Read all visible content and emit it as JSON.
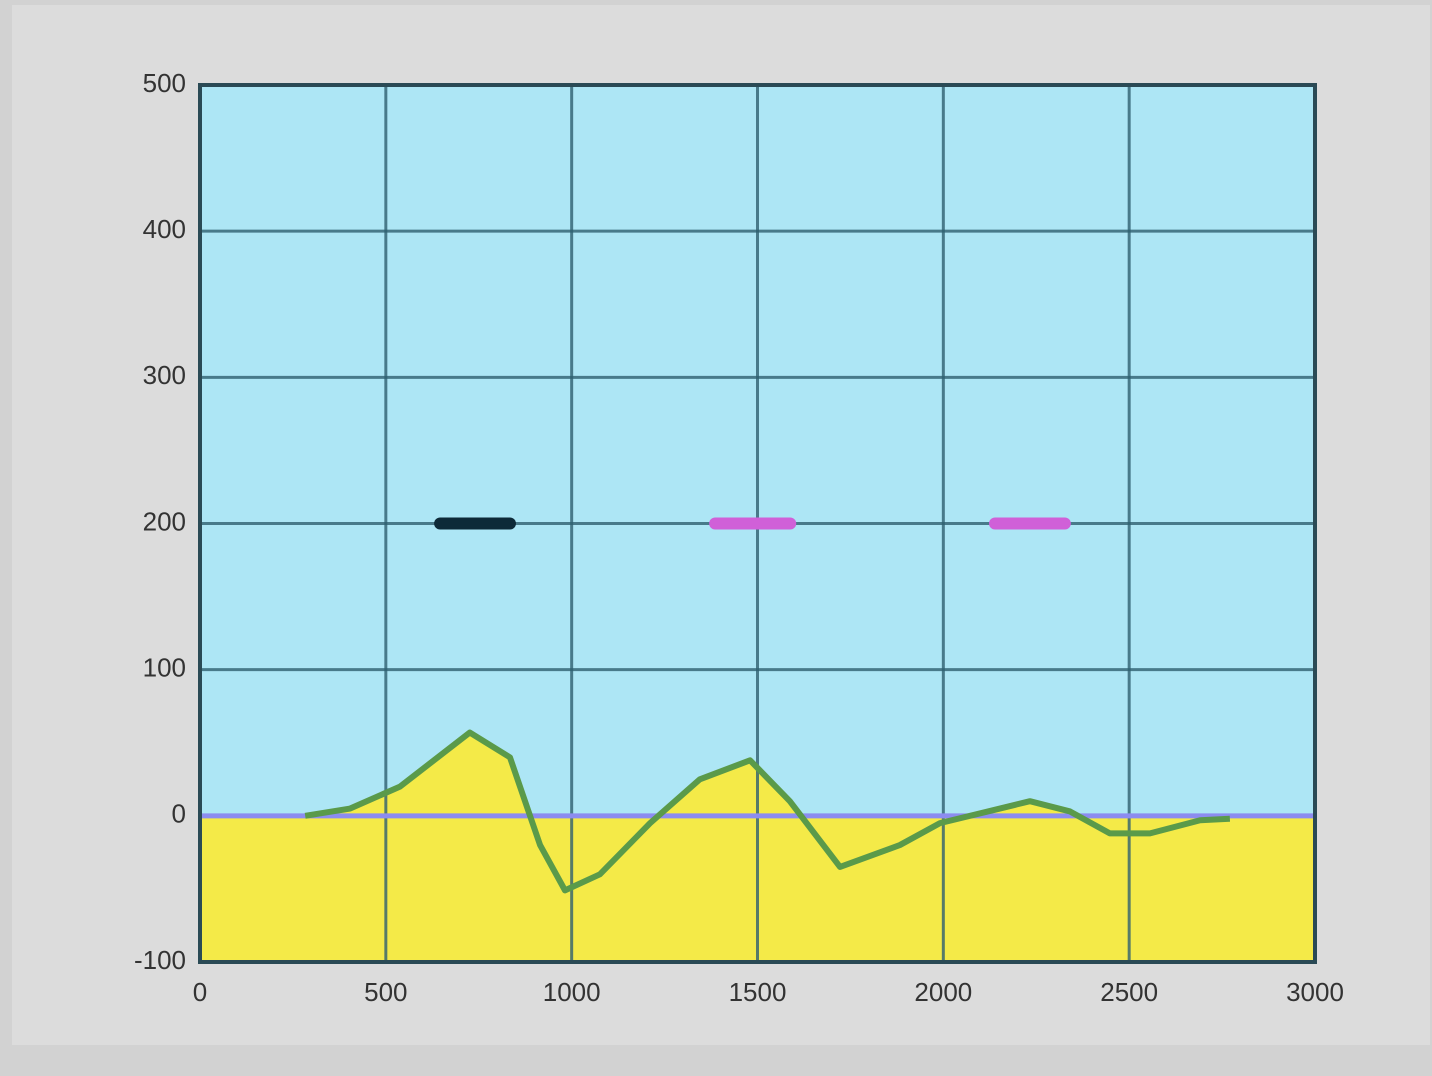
{
  "chart_data": {
    "type": "area",
    "x": [
      283,
      404,
      538,
      726,
      834,
      915,
      982,
      1076,
      1211,
      1345,
      1480,
      1587,
      1722,
      1883,
      1991,
      2152,
      2233,
      2341,
      2448,
      2556,
      2691,
      2771
    ],
    "series": [
      {
        "color": "#5a9a4a",
        "fill": "#f4ea48",
        "values": [
          0,
          5,
          20,
          57,
          40,
          -20,
          -51,
          -40,
          -5,
          25,
          38,
          10,
          -35,
          -20,
          -5,
          5,
          10,
          3,
          -12,
          -12,
          -3,
          -2
        ]
      }
    ],
    "hlines": [
      {
        "y": 0,
        "color": "#8c8cf0",
        "fill_below": "#f4ea48"
      }
    ],
    "segments": [
      {
        "x": [
          646,
          834
        ],
        "y": 200,
        "color": "#0d2a38"
      },
      {
        "x": [
          1386,
          1588
        ],
        "y": 200,
        "color": "#d060d8"
      },
      {
        "x": [
          2139,
          2327
        ],
        "y": 200,
        "color": "#d060d8"
      }
    ],
    "xlim": [
      0,
      3000
    ],
    "xticks": [
      0,
      500,
      1000,
      1500,
      2000,
      2500,
      3000
    ],
    "ylim": [
      -100,
      500
    ],
    "yticks": [
      -100,
      0,
      100,
      200,
      300,
      400,
      500
    ],
    "grid": true,
    "background": "#ade6f5"
  }
}
